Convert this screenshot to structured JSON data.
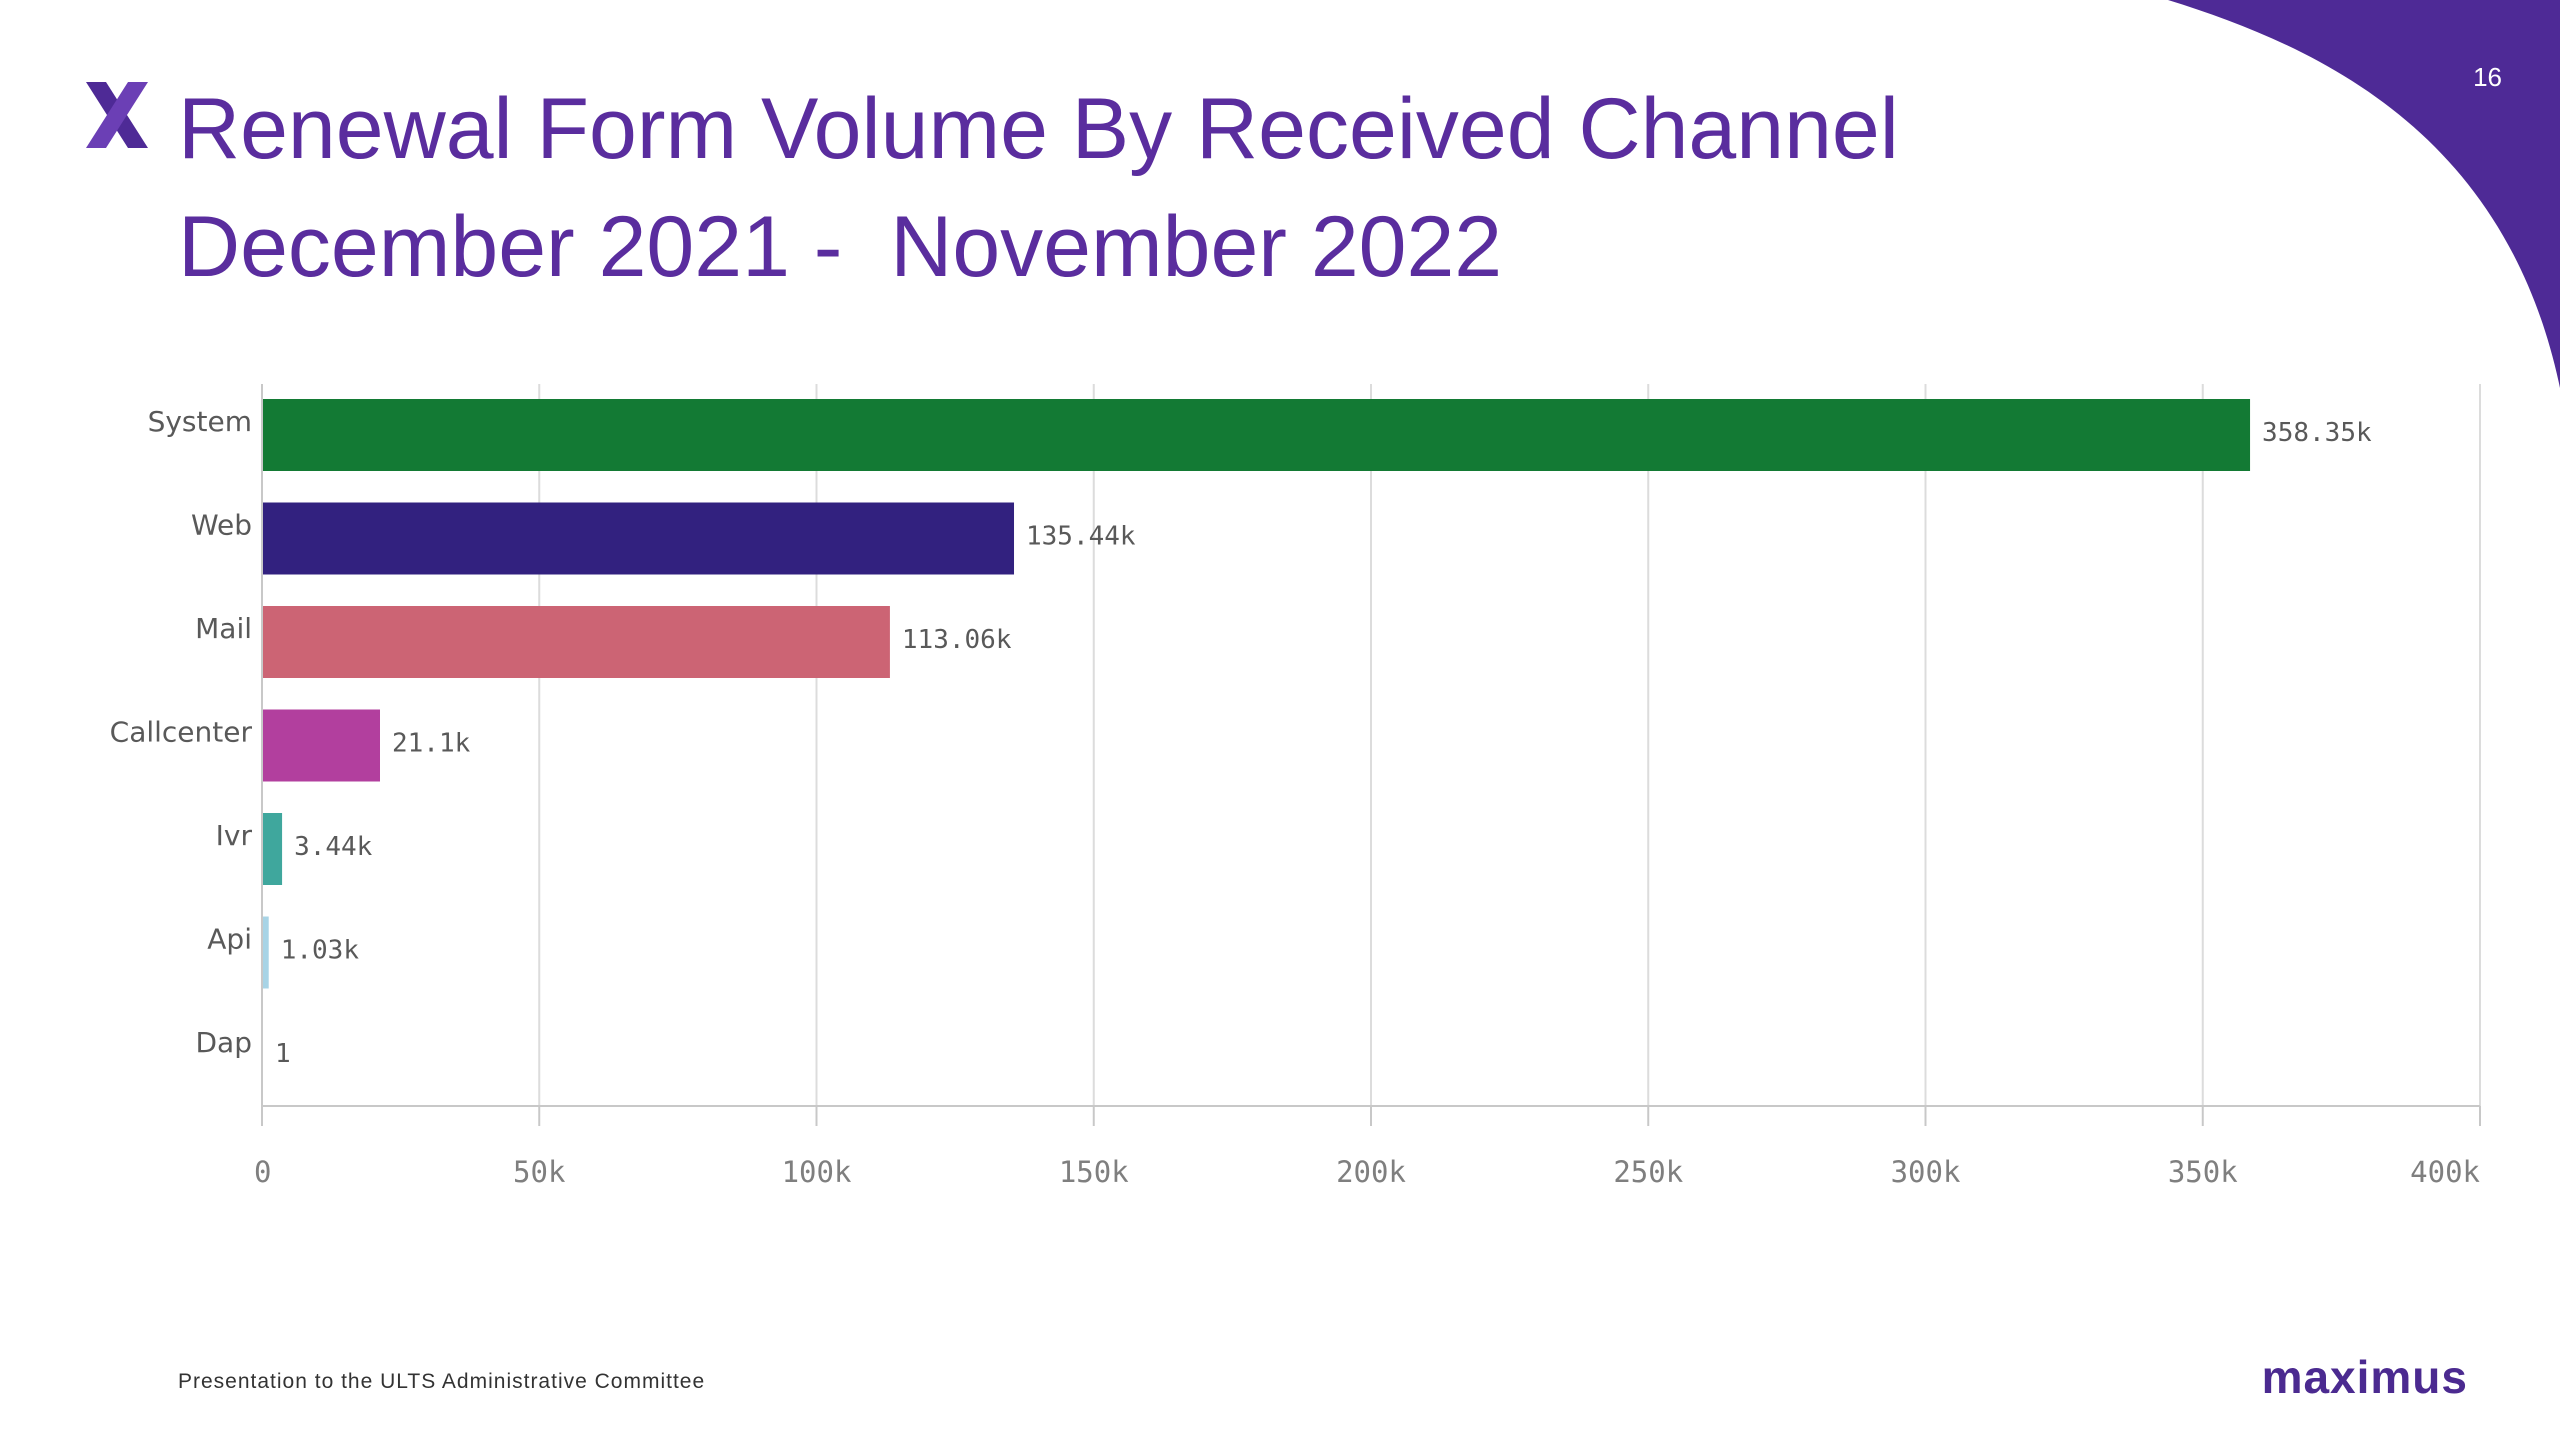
{
  "slide": {
    "page_number": "16",
    "title_line1": "Renewal Form Volume By Received Channel",
    "title_line2": "December 2021 -  November 2022",
    "footer": "Presentation to the ULTS Administrative Committee",
    "brand": "maximus",
    "logo_icon": "x-logo-icon",
    "colors": {
      "title": "#5a2d9e",
      "corner": "#4e2a96",
      "brand": "#4b2a90"
    }
  },
  "chart_data": {
    "type": "bar",
    "orientation": "horizontal",
    "categories": [
      "System",
      "Web",
      "Mail",
      "Callcenter",
      "Ivr",
      "Api",
      "Dap"
    ],
    "values": [
      358350,
      135440,
      113060,
      21100,
      3440,
      1030,
      1
    ],
    "value_labels": [
      "358.35k",
      "135.44k",
      "113.06k",
      "21.1k",
      "3.44k",
      "1.03k",
      "1"
    ],
    "bar_colors": [
      "#137a34",
      "#32217f",
      "#cc6474",
      "#b23f9e",
      "#3fa79d",
      "#a8d4e6",
      "#9a9a9a"
    ],
    "xlim": [
      0,
      400000
    ],
    "x_ticks": [
      0,
      50000,
      100000,
      150000,
      200000,
      250000,
      300000,
      350000,
      400000
    ],
    "x_tick_labels": [
      "0",
      "50k",
      "100k",
      "150k",
      "200k",
      "250k",
      "300k",
      "350k",
      "400k"
    ],
    "grid": true,
    "legend": "none"
  }
}
